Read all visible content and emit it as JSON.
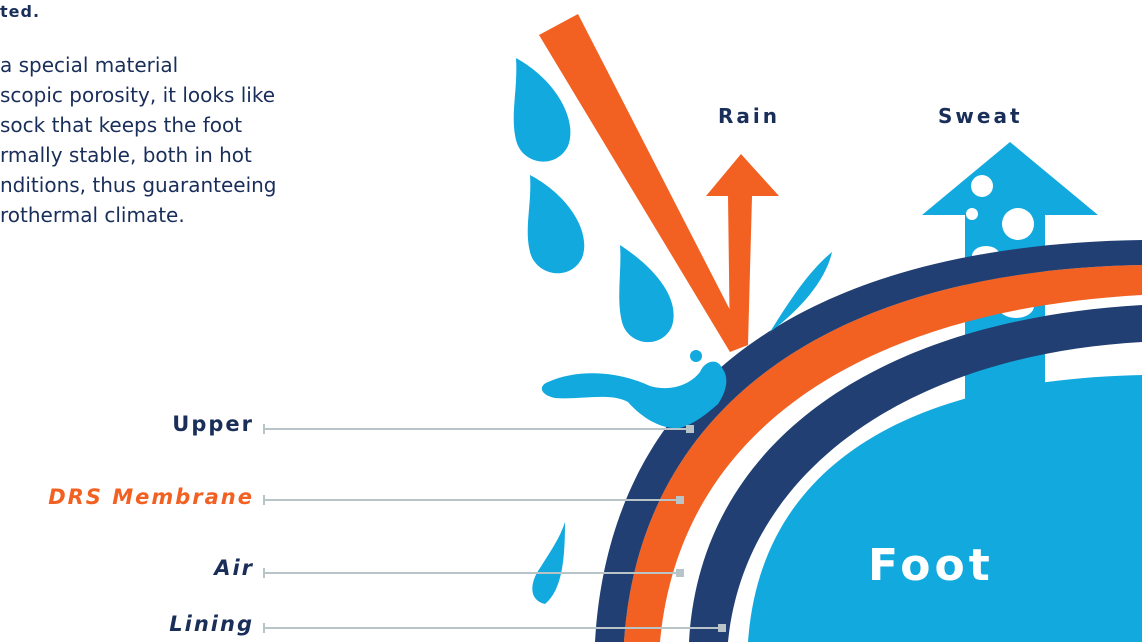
{
  "heading": "ted.",
  "paragraph": [
    "a special material",
    "scopic porosity, it looks like",
    "sock that keeps the foot",
    "rmally stable, both in hot",
    "nditions, thus guaranteeing",
    "rothermal climate."
  ],
  "layers": {
    "upper": "Upper",
    "membrane": "DRS Membrane",
    "air": "Air",
    "lining": "Lining"
  },
  "arrows": {
    "rain": "Rain",
    "sweat": "Sweat"
  },
  "foot": "Foot",
  "colors": {
    "navy": "#1a2e5a",
    "dark_band": "#213f73",
    "orange": "#f26122",
    "water": "#12a9df",
    "leader": "#b8c4c8"
  }
}
